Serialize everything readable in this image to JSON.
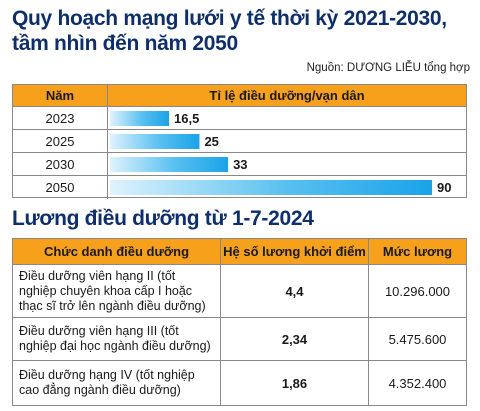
{
  "header": {
    "title": "Quy hoạch mạng lưới y tế thời kỳ 2021-2030, tầm nhìn đến năm 2050",
    "source": "Nguồn: DƯƠNG LIỄU tổng hợp"
  },
  "chart_data": {
    "type": "bar",
    "orientation": "horizontal",
    "title": "Quy hoạch mạng lưới y tế thời kỳ 2021-2030, tầm nhìn đến năm 2050",
    "category_header": "Năm",
    "value_header": "Tỉ lệ điều dưỡng/vạn dân",
    "categories": [
      "2023",
      "2025",
      "2030",
      "2050"
    ],
    "values": [
      16.5,
      25,
      33,
      90
    ],
    "value_labels": [
      "16,5",
      "25",
      "33",
      "90"
    ],
    "xlim": [
      0,
      90
    ],
    "grid": false,
    "legend": "none",
    "bar_color": "#1aa3e8",
    "header_color": "#f6a01c"
  },
  "salary": {
    "title": "Lương điều dưỡng từ 1-7-2024",
    "headers": [
      "Chức danh điều dưỡng",
      "Hệ số lương khởi điểm",
      "Mức lương"
    ],
    "rows": [
      {
        "position": "Điều dưỡng viên hạng II (tốt nghiệp chuyên khoa cấp I hoặc thạc sĩ trở lên ngành điều dưỡng)",
        "coefficient": "4,4",
        "salary": "10.296.000"
      },
      {
        "position": "Điều dưỡng viên hạng III (tốt nghiệp đại học ngành điều dưỡng)",
        "coefficient": "2,34",
        "salary": "5.475.600"
      },
      {
        "position": "Điều dưỡng hạng IV (tốt nghiệp cao đẳng ngành điều dưỡng)",
        "coefficient": "1,86",
        "salary": "4.352.400"
      }
    ]
  }
}
